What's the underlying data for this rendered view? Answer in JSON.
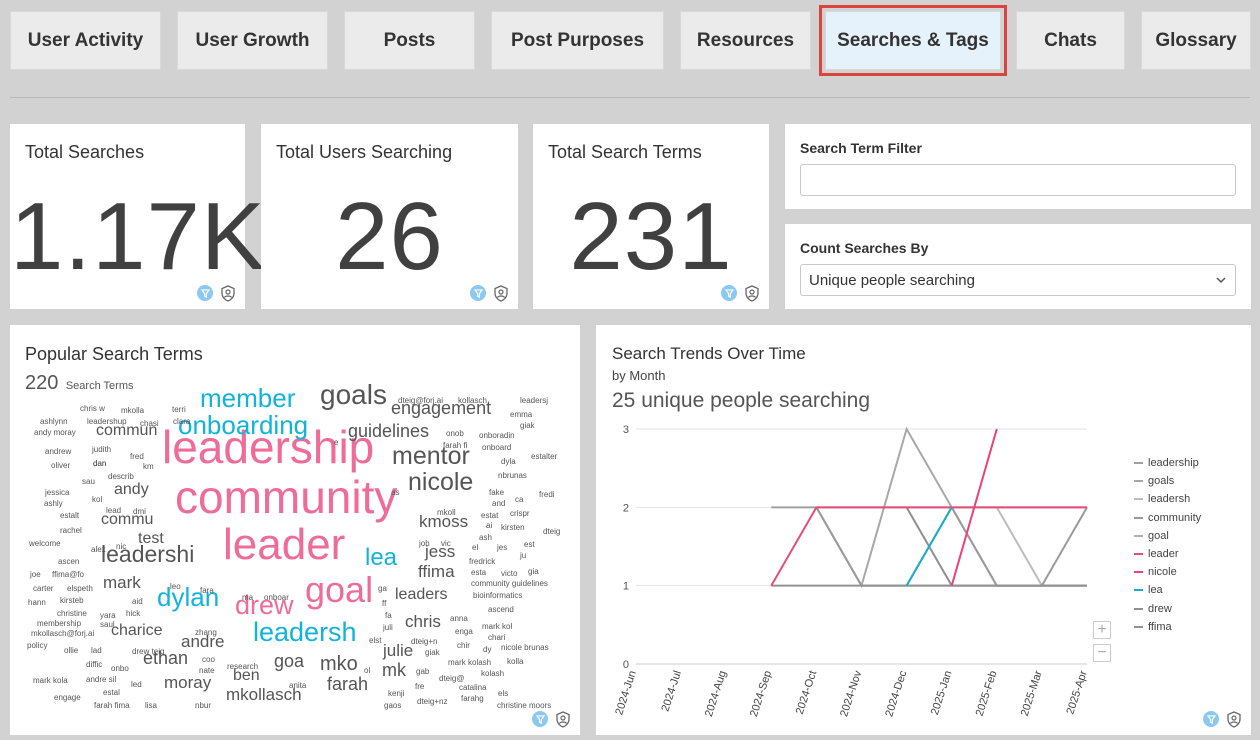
{
  "tabs": [
    {
      "label": "User Activity",
      "active": false
    },
    {
      "label": "User Growth",
      "active": false
    },
    {
      "label": "Posts",
      "active": false
    },
    {
      "label": "Post Purposes",
      "active": false
    },
    {
      "label": "Resources",
      "active": false
    },
    {
      "label": "Searches & Tags",
      "active": true
    },
    {
      "label": "Chats",
      "active": false
    },
    {
      "label": "Glossary",
      "active": false
    }
  ],
  "kpis": {
    "total_searches": {
      "title": "Total Searches",
      "value": "1.17K"
    },
    "total_users": {
      "title": "Total Users Searching",
      "value": "26"
    },
    "total_terms": {
      "title": "Total Search Terms",
      "value": "231"
    }
  },
  "filters": {
    "search_term": {
      "label": "Search Term Filter",
      "value": ""
    },
    "count_by": {
      "label": "Count Searches By",
      "value": "Unique people searching"
    }
  },
  "wordcloud": {
    "title": "Popular Search Terms",
    "count": "220",
    "count_label": "Search Terms",
    "words": [
      {
        "t": "leadership",
        "c": "pink"
      },
      {
        "t": "community",
        "c": "pink"
      },
      {
        "t": "leader",
        "c": "pink"
      },
      {
        "t": "goal",
        "c": "pink"
      },
      {
        "t": "drew",
        "c": "pink"
      },
      {
        "t": "member",
        "c": "cyan"
      },
      {
        "t": "onboarding",
        "c": "cyan"
      },
      {
        "t": "dylan",
        "c": "cyan"
      },
      {
        "t": "leadersh",
        "c": "cyan"
      },
      {
        "t": "lea",
        "c": "cyan"
      },
      {
        "t": "goals"
      },
      {
        "t": "mentor"
      },
      {
        "t": "nicole"
      },
      {
        "t": "engagement"
      },
      {
        "t": "guidelines"
      },
      {
        "t": "kmoss"
      },
      {
        "t": "jess"
      },
      {
        "t": "ffima"
      },
      {
        "t": "leaders"
      },
      {
        "t": "chris"
      },
      {
        "t": "julie"
      },
      {
        "t": "mk"
      },
      {
        "t": "mko"
      },
      {
        "t": "goa"
      },
      {
        "t": "farah"
      },
      {
        "t": "mkollasch"
      },
      {
        "t": "ben"
      },
      {
        "t": "moray"
      },
      {
        "t": "ethan"
      },
      {
        "t": "andre"
      },
      {
        "t": "charice"
      },
      {
        "t": "mark"
      },
      {
        "t": "leadershi"
      },
      {
        "t": "test"
      },
      {
        "t": "commu"
      },
      {
        "t": "andy"
      },
      {
        "t": "commun"
      },
      {
        "t": "chris w"
      },
      {
        "t": "mkolla"
      },
      {
        "t": "terri"
      },
      {
        "t": "ashlynn"
      },
      {
        "t": "leadershup"
      },
      {
        "t": "chasi"
      },
      {
        "t": "clara"
      },
      {
        "t": "andy moray"
      },
      {
        "t": "andrew"
      },
      {
        "t": "judith"
      },
      {
        "t": "fred"
      },
      {
        "t": "oliver"
      },
      {
        "t": "dan"
      },
      {
        "t": "km"
      },
      {
        "t": "sau"
      },
      {
        "t": "describ"
      },
      {
        "t": "jessica"
      },
      {
        "t": "ashly"
      },
      {
        "t": "kol"
      },
      {
        "t": "lead"
      },
      {
        "t": "dmi"
      },
      {
        "t": "estalt"
      },
      {
        "t": "rachel"
      },
      {
        "t": "welcome"
      },
      {
        "t": "alex"
      },
      {
        "t": "nic"
      },
      {
        "t": "ascen"
      },
      {
        "t": "joe"
      },
      {
        "t": "ffima@fo"
      },
      {
        "t": "carter"
      },
      {
        "t": "elspeth"
      },
      {
        "t": "hann"
      },
      {
        "t": "kirsteb"
      },
      {
        "t": "christine"
      },
      {
        "t": "membership"
      },
      {
        "t": "mkollasch@forj.ai"
      },
      {
        "t": "policy"
      },
      {
        "t": "ollie"
      },
      {
        "t": "lad"
      },
      {
        "t": "diffic"
      },
      {
        "t": "onbo"
      },
      {
        "t": "mark kola"
      },
      {
        "t": "andre sil"
      },
      {
        "t": "led"
      },
      {
        "t": "engage"
      },
      {
        "t": "farah fima"
      },
      {
        "t": "lisa"
      },
      {
        "t": "dan"
      },
      {
        "t": "nbur"
      },
      {
        "t": "estal"
      },
      {
        "t": "drew teig"
      },
      {
        "t": "zhang"
      },
      {
        "t": "yara"
      },
      {
        "t": "hick"
      },
      {
        "t": "saul"
      },
      {
        "t": "aid"
      },
      {
        "t": "leo"
      },
      {
        "t": "fara"
      },
      {
        "t": "ma"
      },
      {
        "t": "onboar"
      },
      {
        "t": "coo"
      },
      {
        "t": "nate"
      },
      {
        "t": "research"
      },
      {
        "t": "anita"
      },
      {
        "t": "dteig@forj.ai"
      },
      {
        "t": "kollasch"
      },
      {
        "t": "leadersj"
      },
      {
        "t": "emma"
      },
      {
        "t": "giak"
      },
      {
        "t": "onob"
      },
      {
        "t": "onboradin"
      },
      {
        "t": "farah fi"
      },
      {
        "t": "onboard"
      },
      {
        "t": "dyla"
      },
      {
        "t": "estalter"
      },
      {
        "t": "nbrunas"
      },
      {
        "t": "fake"
      },
      {
        "t": "and"
      },
      {
        "t": "ca"
      },
      {
        "t": "fredi"
      },
      {
        "t": "as"
      },
      {
        "t": "mkoll"
      },
      {
        "t": "estat"
      },
      {
        "t": "crispr"
      },
      {
        "t": "ai"
      },
      {
        "t": "kirsten"
      },
      {
        "t": "dteig"
      },
      {
        "t": "ash"
      },
      {
        "t": "joh"
      },
      {
        "t": "vic"
      },
      {
        "t": "el"
      },
      {
        "t": "jes"
      },
      {
        "t": "est"
      },
      {
        "t": "ju"
      },
      {
        "t": "fredrick"
      },
      {
        "t": "esta"
      },
      {
        "t": "victo"
      },
      {
        "t": "gia"
      },
      {
        "t": "community guidelines"
      },
      {
        "t": "ga"
      },
      {
        "t": "ff"
      },
      {
        "t": "bioinformatics"
      },
      {
        "t": "fa"
      },
      {
        "t": "juli"
      },
      {
        "t": "ascend"
      },
      {
        "t": "anna"
      },
      {
        "t": "enga"
      },
      {
        "t": "mark kol"
      },
      {
        "t": "chari"
      },
      {
        "t": "elst"
      },
      {
        "t": "dteig+n"
      },
      {
        "t": "giak"
      },
      {
        "t": "chir"
      },
      {
        "t": "dy"
      },
      {
        "t": "nicole brunas"
      },
      {
        "t": "mark kolash"
      },
      {
        "t": "kolla"
      },
      {
        "t": "ol"
      },
      {
        "t": "gab"
      },
      {
        "t": "dteig@"
      },
      {
        "t": "kolash"
      },
      {
        "t": "fre"
      },
      {
        "t": "catalina"
      },
      {
        "t": "kenji"
      },
      {
        "t": "farahg"
      },
      {
        "t": "els"
      },
      {
        "t": "gaos"
      },
      {
        "t": "dteig+nz"
      },
      {
        "t": "christine moors"
      },
      {
        "t": "e"
      }
    ]
  },
  "trend": {
    "title": "Search Trends Over Time",
    "subtitle": "by Month",
    "headline": "25 unique people searching",
    "zoom_in": "+",
    "zoom_out": "−"
  },
  "chart_data": {
    "type": "line",
    "x": [
      "2024-Jun",
      "2024-Jul",
      "2024-Aug",
      "2024-Sep",
      "2024-Oct",
      "2024-Nov",
      "2024-Dec",
      "2025-Jan",
      "2025-Feb",
      "2025-Mar",
      "2025-Apr"
    ],
    "ylim": [
      0,
      3
    ],
    "yticks": [
      0,
      1,
      2,
      3
    ],
    "grid": true,
    "legend_position": "right",
    "series": [
      {
        "name": "leadership",
        "color": "#a0a0a0",
        "values": [
          null,
          null,
          null,
          2,
          2,
          2,
          2,
          2,
          2,
          2,
          2
        ]
      },
      {
        "name": "goals",
        "color": "#a8a8a8",
        "values": [
          null,
          null,
          null,
          null,
          2,
          1,
          3,
          2,
          1,
          1,
          1
        ]
      },
      {
        "name": "leadersh",
        "color": "#bcbcbc",
        "values": [
          null,
          null,
          null,
          null,
          null,
          null,
          null,
          null,
          2,
          1,
          1
        ]
      },
      {
        "name": "community",
        "color": "#9a9a9a",
        "values": [
          null,
          null,
          null,
          null,
          2,
          1,
          1,
          2,
          1,
          1,
          2
        ]
      },
      {
        "name": "goal",
        "color": "#b0b0b0",
        "values": [
          null,
          null,
          null,
          null,
          null,
          1,
          1,
          1,
          1,
          1,
          1
        ]
      },
      {
        "name": "leader",
        "color": "#e84d78",
        "values": [
          null,
          null,
          null,
          1,
          2,
          2,
          2,
          2,
          2,
          2,
          2
        ]
      },
      {
        "name": "nicole",
        "color": "#ef3f7d",
        "values": [
          null,
          null,
          null,
          null,
          null,
          null,
          null,
          1,
          3,
          null,
          null
        ]
      },
      {
        "name": "lea",
        "color": "#1aaccc",
        "values": [
          null,
          null,
          null,
          null,
          null,
          null,
          1,
          2,
          null,
          null,
          null
        ]
      },
      {
        "name": "drew",
        "color": "#8f8f8f",
        "values": [
          null,
          null,
          null,
          null,
          null,
          null,
          2,
          1,
          1,
          1,
          1
        ]
      },
      {
        "name": "ffima",
        "color": "#929292",
        "values": [
          null,
          null,
          null,
          1,
          1,
          1,
          1,
          1,
          1,
          1,
          1
        ]
      }
    ]
  }
}
